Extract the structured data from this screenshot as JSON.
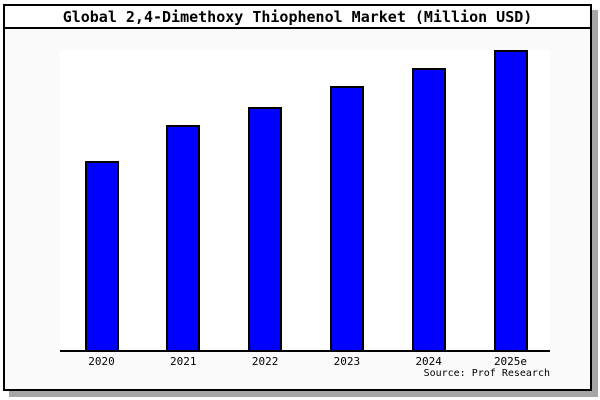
{
  "figure": {
    "background": "#fafafa",
    "plot_background": "#ffffff",
    "frame_border_color": "#000000",
    "shadow_color": "#a6a6a6"
  },
  "chart_data": {
    "type": "bar",
    "title": "Global 2,4-Dimethoxy Thiophenol Market (Million USD)",
    "categories": [
      "2020",
      "2021",
      "2022",
      "2023",
      "2024",
      "2025e"
    ],
    "values": [
      63,
      75,
      81,
      88,
      94,
      100
    ],
    "values_note": "y-axis has no visible tick labels; values estimated from bar heights relative to 2025e = 100",
    "xlabel": "",
    "ylabel": "",
    "ylim": [
      0,
      100
    ],
    "grid": false,
    "legend": false,
    "bar_color": "#0000ff",
    "bar_border_color": "#000000",
    "axis_line_color": "#000000"
  },
  "footer": {
    "source_note": "Source: Prof Research"
  }
}
